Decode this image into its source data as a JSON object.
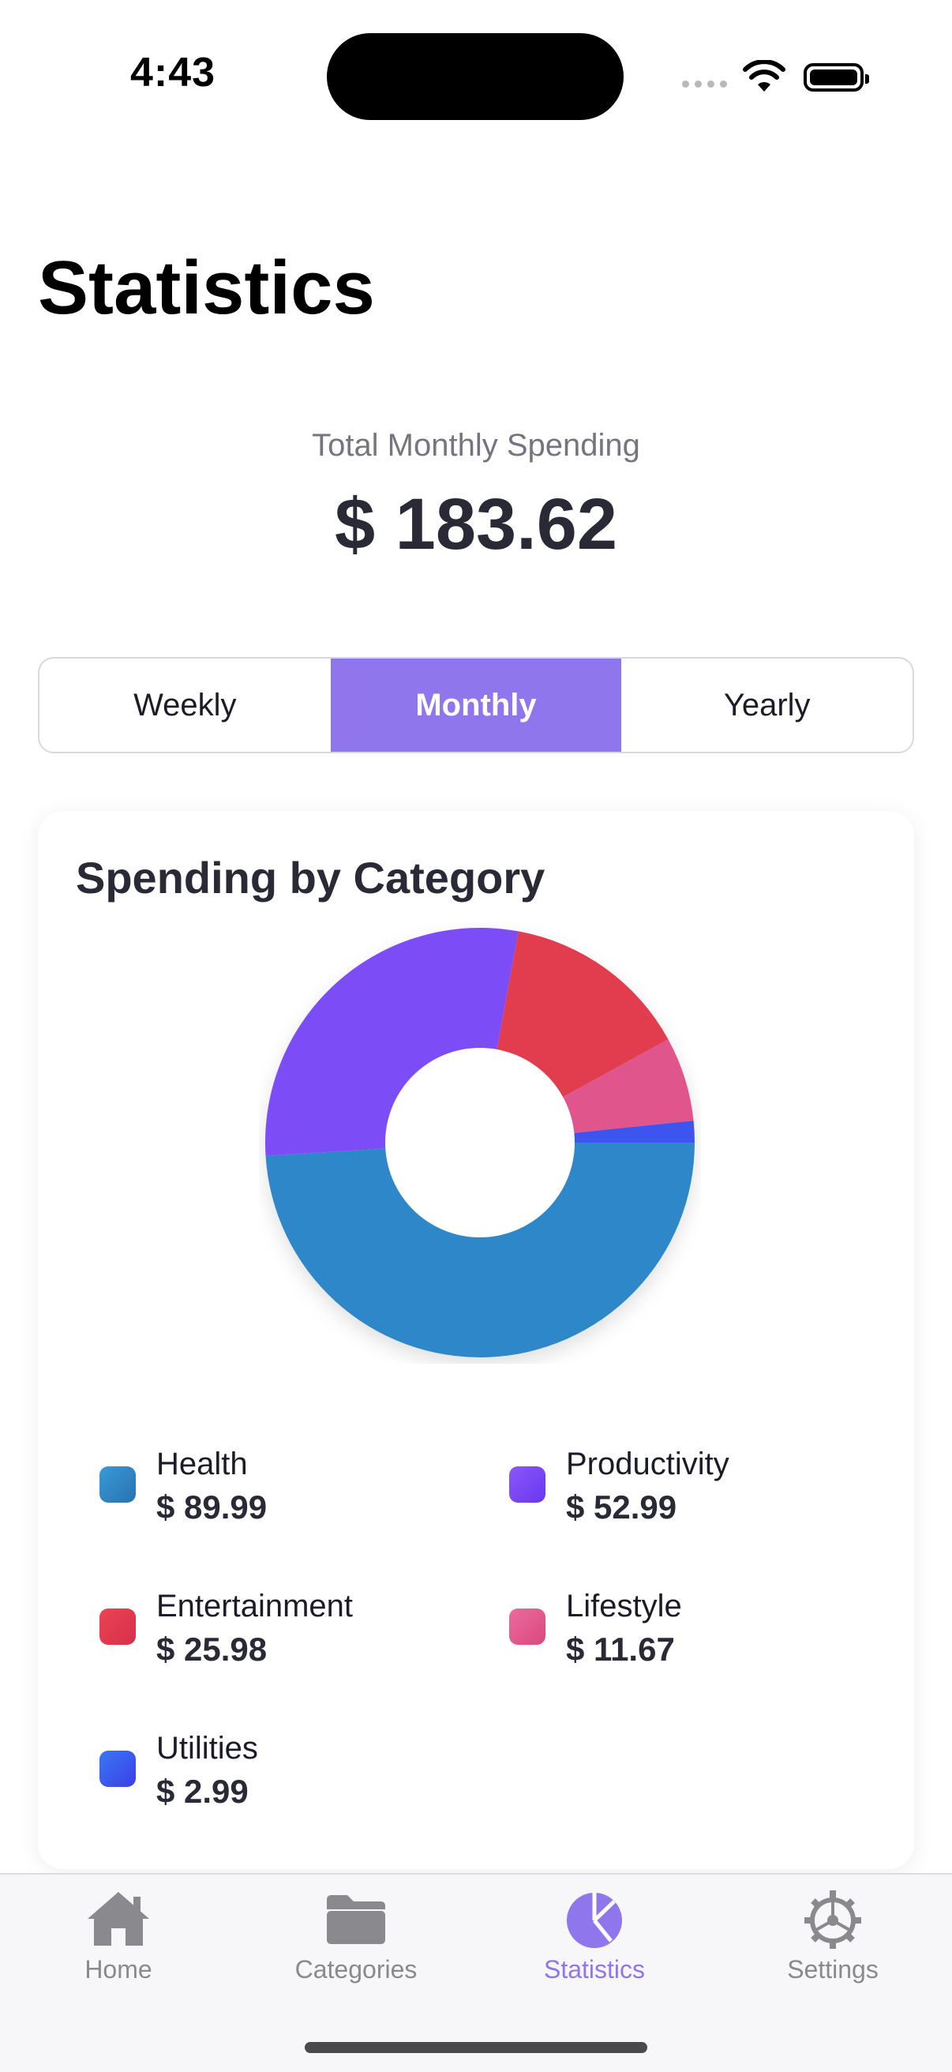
{
  "status_bar": {
    "time": "4:43"
  },
  "page": {
    "title": "Statistics"
  },
  "summary": {
    "label": "Total Monthly Spending",
    "value": "$ 183.62"
  },
  "segmented_control": {
    "options": [
      "Weekly",
      "Monthly",
      "Yearly"
    ],
    "selected": "Monthly"
  },
  "card": {
    "title": "Spending by Category"
  },
  "chart_data": {
    "type": "pie",
    "title": "Spending by Category",
    "style": "donut",
    "slices": [
      {
        "name": "Health",
        "value": 89.99,
        "display": "$ 89.99",
        "color": "#2d87c8"
      },
      {
        "name": "Productivity",
        "value": 52.99,
        "display": "$ 52.99",
        "color": "#7b4ef6"
      },
      {
        "name": "Entertainment",
        "value": 25.98,
        "display": "$ 25.98",
        "color": "#e23c4f"
      },
      {
        "name": "Lifestyle",
        "value": 11.67,
        "display": "$ 11.67",
        "color": "#e0578c"
      },
      {
        "name": "Utilities",
        "value": 2.99,
        "display": "$ 2.99",
        "color": "#3e54ee"
      }
    ]
  },
  "tab_bar": {
    "tabs": [
      {
        "label": "Home",
        "icon": "house-icon"
      },
      {
        "label": "Categories",
        "icon": "folder-icon"
      },
      {
        "label": "Statistics",
        "icon": "pie-chart-icon"
      },
      {
        "label": "Settings",
        "icon": "gear-icon"
      }
    ],
    "active": "Statistics"
  },
  "colors": {
    "accent": "#8f76ec",
    "inactive": "#8a8a8e"
  }
}
